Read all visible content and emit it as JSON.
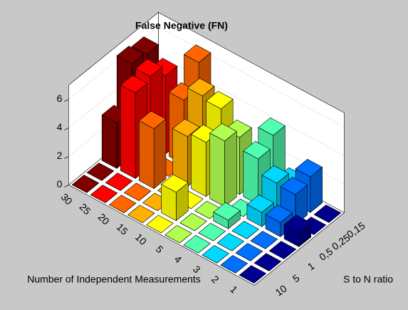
{
  "chart_data": {
    "type": "bar3d",
    "title": "False Negative (FN)",
    "x_label": "Number of Independent Measurements",
    "y_label": "S to N ratio",
    "x_categories": [
      "30",
      "25",
      "20",
      "15",
      "10",
      "5",
      "4",
      "3",
      "2",
      "1"
    ],
    "y_categories": [
      "0,15",
      "0,25",
      "0,5",
      "1",
      "5",
      "10"
    ],
    "colors": [
      "#800000",
      "#ff0000",
      "#ff6600",
      "#ffb000",
      "#ffff00",
      "#b0ff50",
      "#50ffb0",
      "#00d8ff",
      "#0070ff",
      "#00008f"
    ],
    "values": [
      [
        0,
        6.3,
        6.5,
        3.2,
        0,
        0
      ],
      [
        0,
        5.5,
        6.3,
        6.0,
        0,
        0
      ],
      [
        6.3,
        4.5,
        0,
        4.2,
        0,
        0
      ],
      [
        0,
        5.5,
        3.5,
        0,
        0,
        0
      ],
      [
        0,
        5.3,
        3.8,
        0,
        2.0,
        0
      ],
      [
        0,
        4.0,
        4.6,
        0,
        0,
        0
      ],
      [
        4.0,
        3.2,
        0,
        0.6,
        0,
        0
      ],
      [
        1.2,
        2.2,
        1.0,
        0,
        0,
        0
      ],
      [
        2.5,
        2.1,
        1.0,
        0,
        0,
        0
      ],
      [
        0,
        0,
        1.0,
        0,
        0,
        0
      ]
    ],
    "zlim": [
      0,
      7
    ],
    "zticks": [
      0,
      2,
      4,
      6
    ],
    "grid": true
  }
}
